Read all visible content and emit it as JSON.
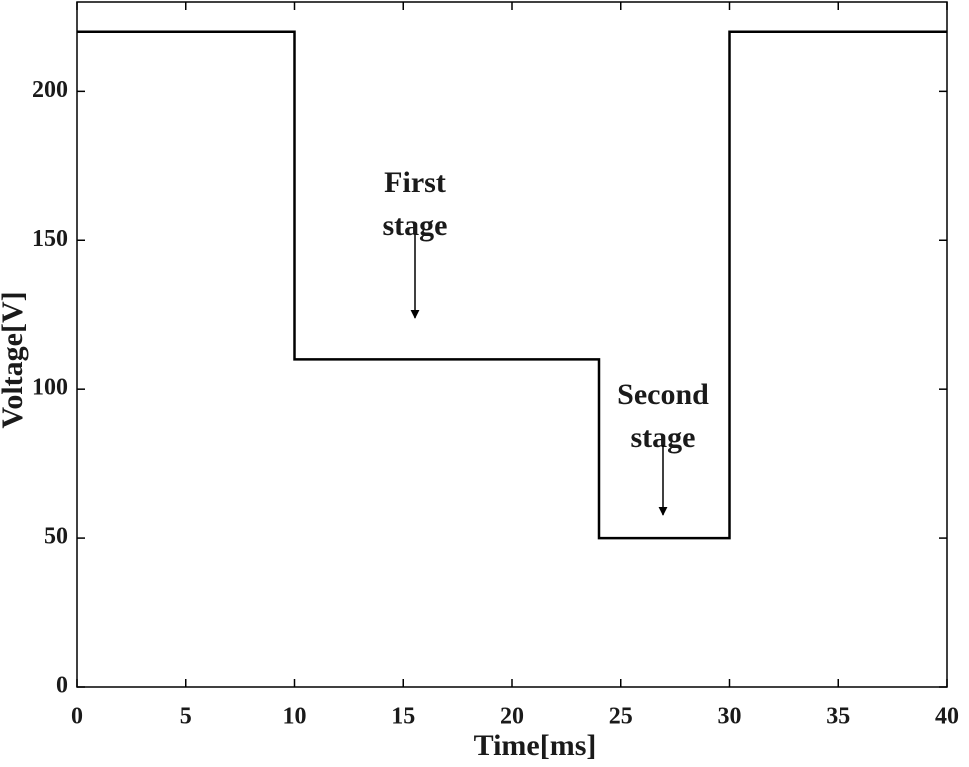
{
  "chart_data": {
    "type": "line",
    "x": [
      0,
      10,
      10,
      24,
      24,
      30,
      30,
      40
    ],
    "values": [
      220,
      220,
      110,
      110,
      50,
      50,
      220,
      220
    ],
    "color": "#000000",
    "xlabel": "Time[ms]",
    "ylabel": "Voltage[V]",
    "xlim": [
      0,
      40
    ],
    "ylim": [
      0,
      230
    ],
    "xticks": [
      0,
      5,
      10,
      15,
      20,
      25,
      30,
      35,
      40
    ],
    "yticks": [
      0,
      50,
      100,
      150,
      200
    ],
    "grid": false,
    "annotations": [
      {
        "lines": [
          "First",
          "stage"
        ]
      },
      {
        "lines": [
          "Second",
          "stage"
        ]
      }
    ]
  }
}
